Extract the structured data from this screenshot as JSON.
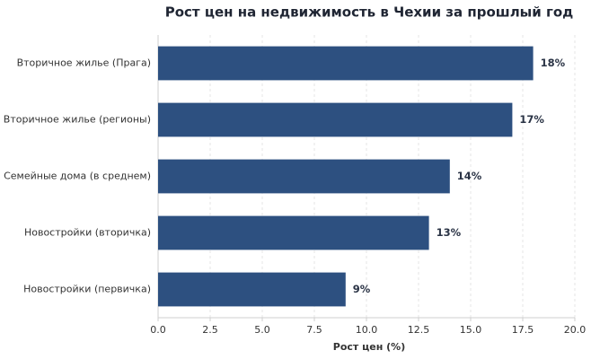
{
  "chart_data": {
    "type": "bar",
    "orientation": "horizontal",
    "title": "Рост цен на недвижимость в Чехии за прошлый год",
    "x_label": "Рост цен (%)",
    "categories": [
      "Вторичное жилье (Прага)",
      "Вторичное жилье (регионы)",
      "Семейные дома (в среднем)",
      "Новостройки (вторичка)",
      "Новостройки (первичка)"
    ],
    "values": [
      18,
      17,
      14,
      13,
      9
    ],
    "value_labels": [
      "18%",
      "17%",
      "14%",
      "13%",
      "9%"
    ],
    "color": "#2d5080",
    "xlim": [
      0,
      20
    ],
    "xticks": [
      {
        "value": 0,
        "label": "0.0"
      },
      {
        "value": 2.5,
        "label": "2.5"
      },
      {
        "value": 5,
        "label": "5.0"
      },
      {
        "value": 7.5,
        "label": "7.5"
      },
      {
        "value": 10,
        "label": "10.0"
      },
      {
        "value": 12.5,
        "label": "12.5"
      },
      {
        "value": 15,
        "label": "15.0"
      },
      {
        "value": 17.5,
        "label": "17.5"
      },
      {
        "value": 20,
        "label": "20.0"
      }
    ],
    "grid": true
  }
}
